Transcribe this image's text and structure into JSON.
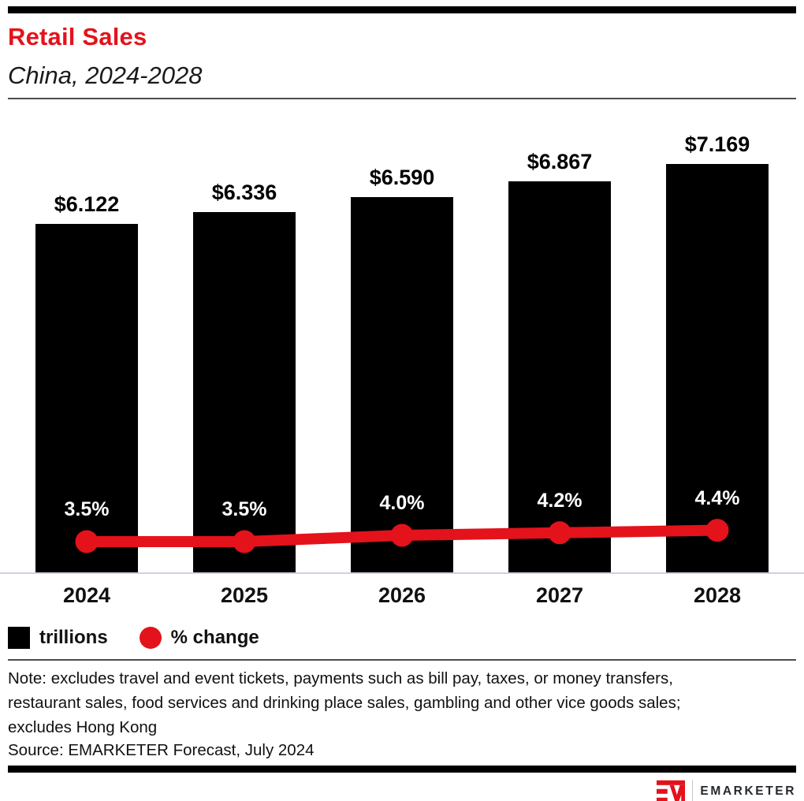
{
  "header": {
    "title": "Retail Sales",
    "subtitle": "China, 2024-2028"
  },
  "chart_data": {
    "type": "bar",
    "title": "Retail Sales",
    "subtitle": "China, 2024-2028",
    "categories": [
      "2024",
      "2025",
      "2026",
      "2027",
      "2028"
    ],
    "series": [
      {
        "name": "trillions",
        "type": "bar",
        "values": [
          6.122,
          6.336,
          6.59,
          6.867,
          7.169
        ],
        "labels": [
          "$6.122",
          "$6.336",
          "$6.590",
          "$6.867",
          "$7.169"
        ],
        "color": "#000000"
      },
      {
        "name": "% change",
        "type": "line",
        "values": [
          3.5,
          3.5,
          4.0,
          4.2,
          4.4
        ],
        "labels": [
          "3.5%",
          "3.5%",
          "4.0%",
          "4.2%",
          "4.4%"
        ],
        "color": "#E4121B"
      }
    ],
    "ylim_bar": [
      0,
      8.3
    ],
    "ylim_line": [
      0,
      10
    ],
    "grid": false,
    "legend_position": "bottom-left"
  },
  "legend": {
    "items": [
      {
        "label": "trillions",
        "swatch": "square",
        "color": "#000000"
      },
      {
        "label": "% change",
        "swatch": "circle",
        "color": "#E4121B"
      }
    ]
  },
  "note": "Note: excludes travel and event tickets, payments such as bill pay, taxes, or money transfers, restaurant sales, food services and drinking place sales, gambling and other vice goods sales; excludes Hong Kong",
  "source": "Source: EMARKETER Forecast, July 2024",
  "footer": {
    "brand": "EMARKETER"
  },
  "colors": {
    "accent_red": "#E4121B",
    "bar_black": "#000000",
    "baseline_gray": "#cdd3dc",
    "divider_gray": "#4d4d4d"
  }
}
